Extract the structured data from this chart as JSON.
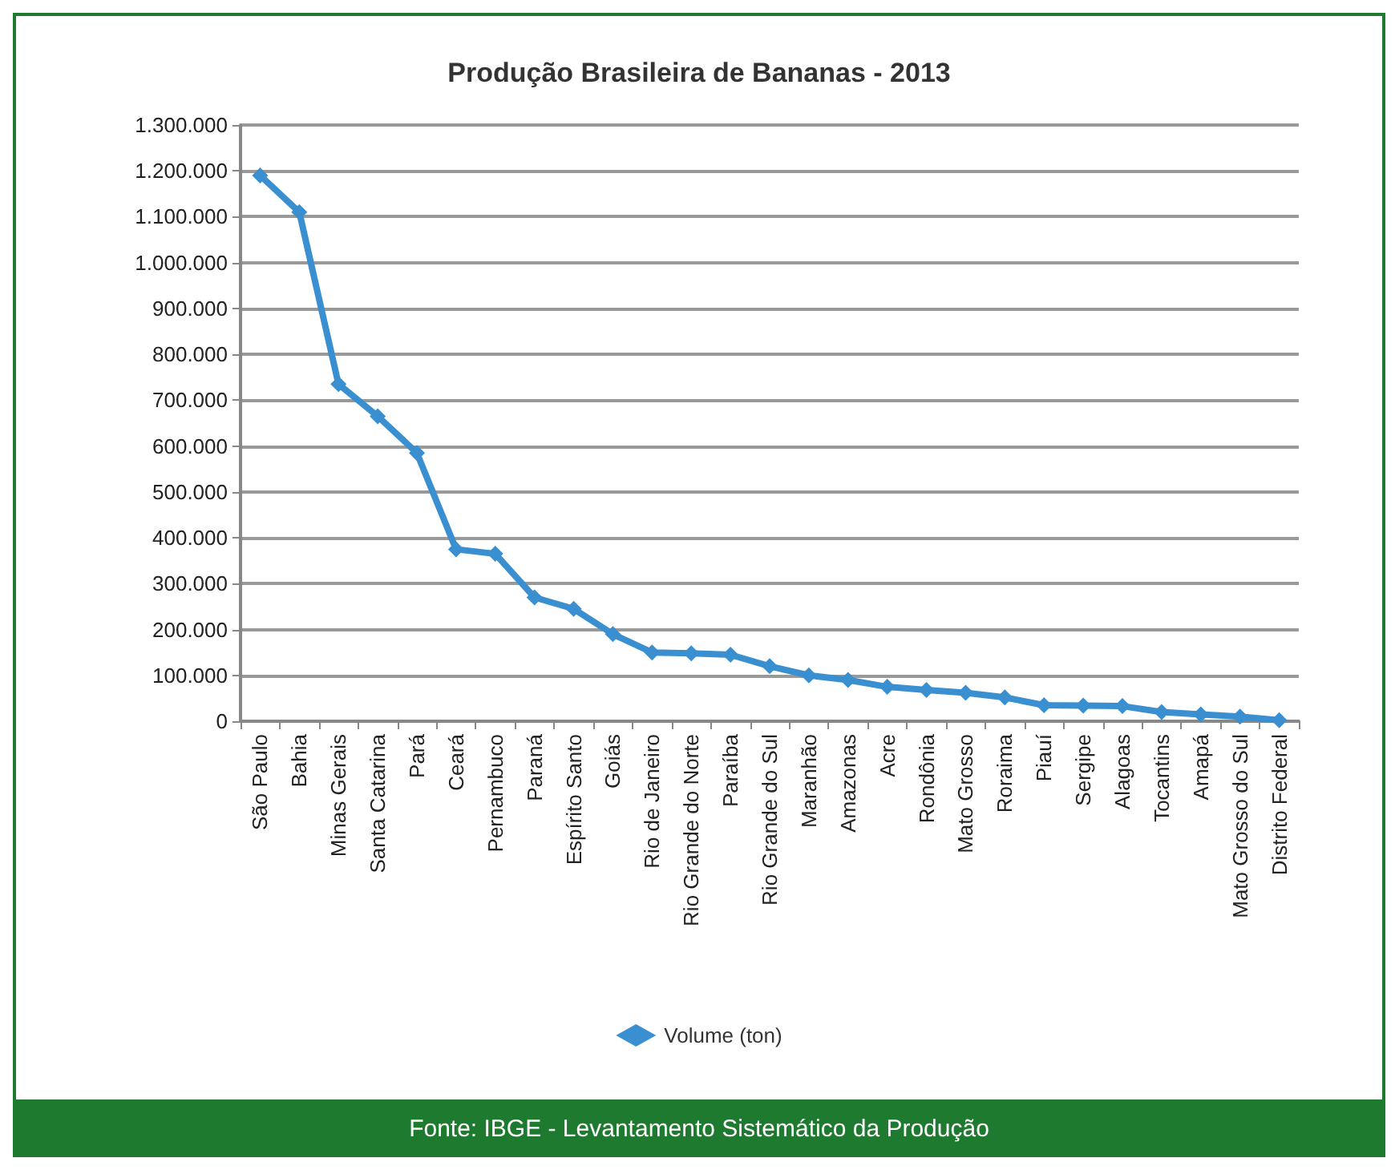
{
  "chart_data": {
    "type": "line",
    "title": "Produção Brasileira de Bananas - 2013",
    "categories": [
      "São Paulo",
      "Bahia",
      "Minas Gerais",
      "Santa Catarina",
      "Pará",
      "Ceará",
      "Pernambuco",
      "Paraná",
      "Espírito Santo",
      "Goiás",
      "Rio de Janeiro",
      "Rio Grande do Norte",
      "Paraíba",
      "Rio Grande do Sul",
      "Maranhão",
      "Amazonas",
      "Acre",
      "Rondônia",
      "Mato Grosso",
      "Roraima",
      "Piauí",
      "Sergipe",
      "Alagoas",
      "Tocantins",
      "Amapá",
      "Mato Grosso do Sul",
      "Distrito Federal"
    ],
    "series": [
      {
        "name": "Volume (ton)",
        "color": "#3a8fd0",
        "values": [
          1190000,
          1110000,
          735000,
          665000,
          585000,
          375000,
          365000,
          270000,
          245000,
          190000,
          150000,
          148000,
          145000,
          120000,
          100000,
          90000,
          75000,
          68000,
          62000,
          52000,
          35000,
          34000,
          33000,
          20000,
          15000,
          10000,
          2000
        ]
      }
    ],
    "ylim": [
      0,
      1300000
    ],
    "yticks": [
      {
        "value": 0,
        "label": "0"
      },
      {
        "value": 100000,
        "label": "100.000"
      },
      {
        "value": 200000,
        "label": "200.000"
      },
      {
        "value": 300000,
        "label": "300.000"
      },
      {
        "value": 400000,
        "label": "400.000"
      },
      {
        "value": 500000,
        "label": "500.000"
      },
      {
        "value": 600000,
        "label": "600.000"
      },
      {
        "value": 700000,
        "label": "700.000"
      },
      {
        "value": 800000,
        "label": "800.000"
      },
      {
        "value": 900000,
        "label": "900.000"
      },
      {
        "value": 1000000,
        "label": "1.000.000"
      },
      {
        "value": 1100000,
        "label": "1.100.000"
      },
      {
        "value": 1200000,
        "label": "1.200.000"
      },
      {
        "value": 1300000,
        "label": "1.300.000"
      }
    ],
    "grid": "y",
    "legend": "bottom",
    "marker": "diamond",
    "line_style": "solid",
    "annotations": [
      "Fonte: IBGE - Levantamento Sistemático da Produção"
    ]
  }
}
